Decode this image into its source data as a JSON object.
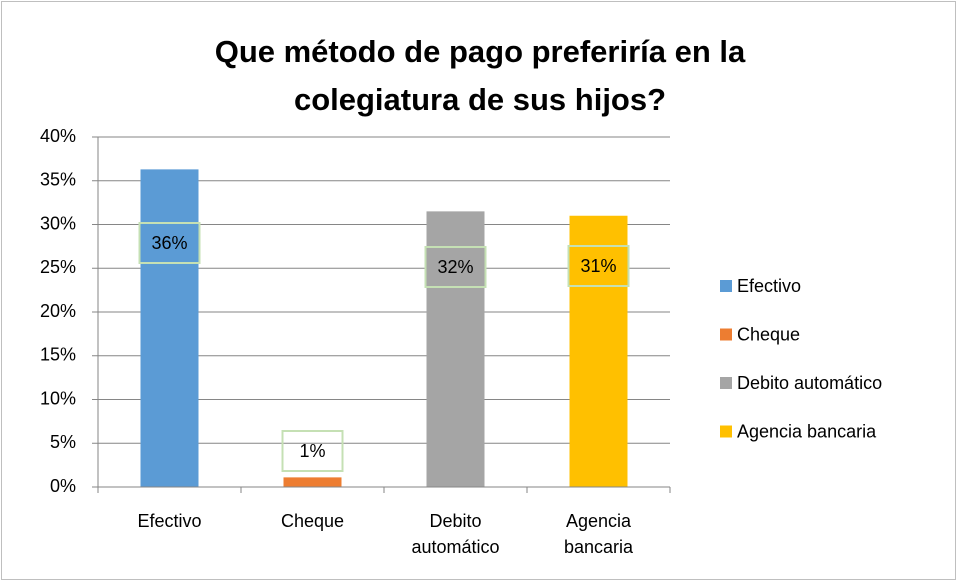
{
  "chart_data": {
    "type": "bar",
    "title": "Que método de pago preferiría en la colegiatura de sus hijos?",
    "categories": [
      "Efectivo",
      "Cheque",
      "Debito automático",
      "Agencia bancaria"
    ],
    "values": [
      36.3,
      1.1,
      31.5,
      31.0
    ],
    "value_labels": [
      "36%",
      "1%",
      "32%",
      "31%"
    ],
    "colors": [
      "#5b9bd5",
      "#ed7d31",
      "#a5a5a5",
      "#ffc000"
    ],
    "ylim": [
      0,
      40
    ],
    "yticks": [
      {
        "value": 0,
        "label": "0%"
      },
      {
        "value": 5,
        "label": "5%"
      },
      {
        "value": 10,
        "label": "10%"
      },
      {
        "value": 15,
        "label": "15%"
      },
      {
        "value": 20,
        "label": "20%"
      },
      {
        "value": 25,
        "label": "25%"
      },
      {
        "value": 30,
        "label": "30%"
      },
      {
        "value": 35,
        "label": "35%"
      },
      {
        "value": 40,
        "label": "40%"
      }
    ],
    "grid": true,
    "legend": "right"
  }
}
